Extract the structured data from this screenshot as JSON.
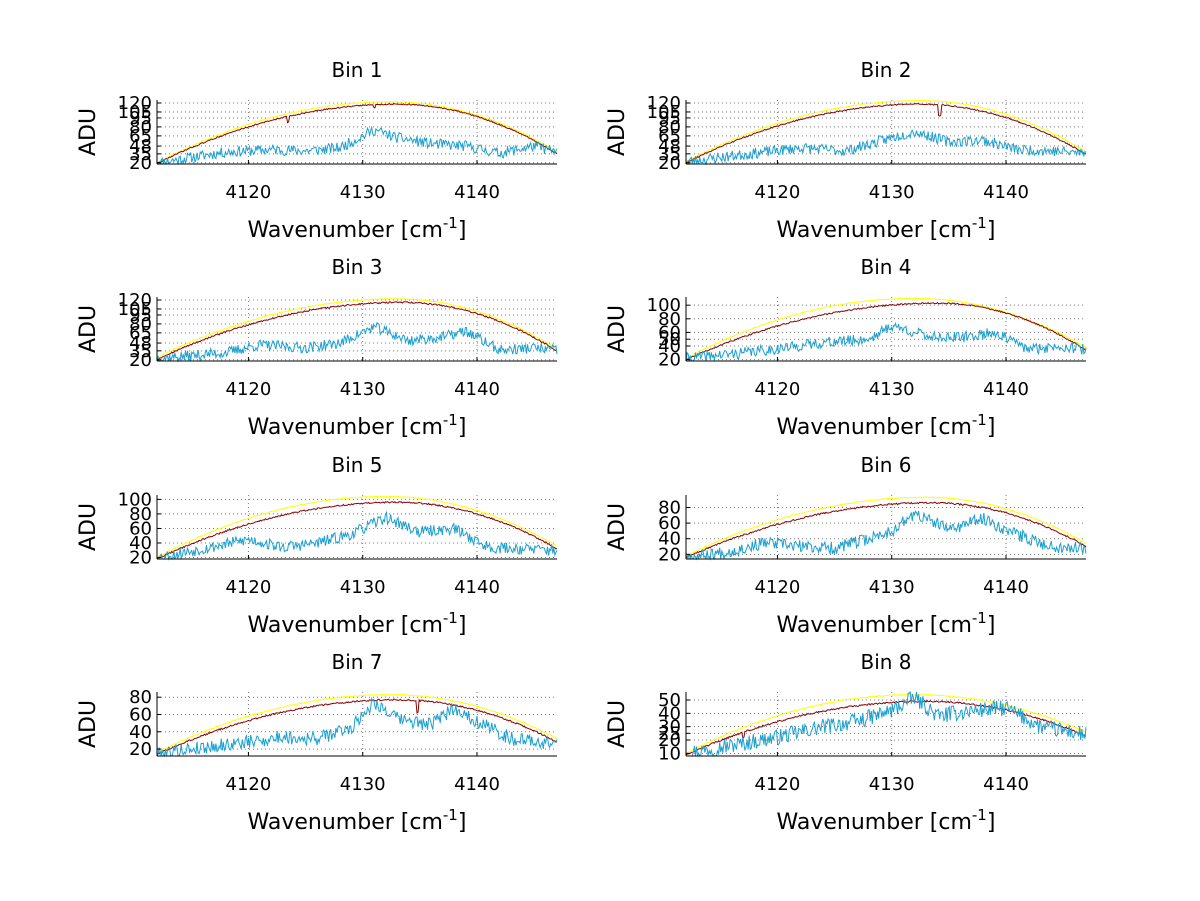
{
  "chart_data": [
    {
      "type": "line",
      "title": "Bin 1",
      "xlabel": "Wavenumber [cm",
      "xlabel_sup": "-1",
      "xlabel_end": "]",
      "ylabel": "ADU",
      "xlim": [
        4112,
        4147
      ],
      "ylim": [
        18,
        125
      ],
      "xticks": [
        4120,
        4130,
        4140
      ],
      "xtick_labels": [
        "4120",
        "4130",
        "4140"
      ],
      "yticks": [
        20,
        35,
        48,
        65,
        80,
        95,
        105,
        120
      ],
      "ytick_labels": [
        "20",
        "35",
        "48",
        "65",
        "80",
        "95",
        "105",
        "120"
      ],
      "grid": true,
      "series": [
        {
          "color": "#ffff00",
          "kind": "envelope",
          "peak_x": 4132.5,
          "peak_y": 122,
          "end_y": [
            20,
            38
          ],
          "noise": 1.2
        },
        {
          "color": "#8b0000",
          "kind": "envelope",
          "peak_x": 4133,
          "peak_y": 118,
          "end_y": [
            19,
            35
          ],
          "noise": 2.0,
          "dips": [
            [
              4123.5,
              -10
            ],
            [
              4131,
              -5
            ]
          ]
        },
        {
          "color": "#1ca0d0",
          "kind": "noisy",
          "noise": 9.0,
          "seed": 11,
          "base_points": [
            [
              4112,
              20
            ],
            [
              4118,
              38
            ],
            [
              4122,
              42
            ],
            [
              4125,
              40
            ],
            [
              4128,
              45
            ],
            [
              4131,
              75
            ],
            [
              4133,
              62
            ],
            [
              4136,
              52
            ],
            [
              4139,
              48
            ],
            [
              4142,
              36
            ],
            [
              4145,
              48
            ],
            [
              4147,
              38
            ]
          ]
        }
      ]
    },
    {
      "type": "line",
      "title": "Bin 2",
      "xlabel": "Wavenumber [cm",
      "xlabel_sup": "-1",
      "xlabel_end": "]",
      "ylabel": "ADU",
      "xlim": [
        4112,
        4147
      ],
      "ylim": [
        18,
        125
      ],
      "xticks": [
        4120,
        4130,
        4140
      ],
      "xtick_labels": [
        "4120",
        "4130",
        "4140"
      ],
      "yticks": [
        20,
        35,
        48,
        65,
        80,
        95,
        105,
        120
      ],
      "ytick_labels": [
        "20",
        "35",
        "48",
        "65",
        "80",
        "95",
        "105",
        "120"
      ],
      "grid": true,
      "series": [
        {
          "color": "#ffff00",
          "kind": "envelope",
          "peak_x": 4132.5,
          "peak_y": 124,
          "end_y": [
            22,
            38
          ],
          "noise": 1.2
        },
        {
          "color": "#8b0000",
          "kind": "envelope",
          "peak_x": 4132.5,
          "peak_y": 118,
          "end_y": [
            20,
            34
          ],
          "noise": 2.0,
          "dips": [
            [
              4134.2,
              -18
            ]
          ]
        },
        {
          "color": "#1ca0d0",
          "kind": "noisy",
          "noise": 9.0,
          "seed": 23,
          "base_points": [
            [
              4112,
              22
            ],
            [
              4118,
              36
            ],
            [
              4122,
              45
            ],
            [
              4126,
              40
            ],
            [
              4130,
              62
            ],
            [
              4132,
              72
            ],
            [
              4135,
              55
            ],
            [
              4138,
              58
            ],
            [
              4141,
              42
            ],
            [
              4144,
              40
            ],
            [
              4147,
              36
            ]
          ]
        }
      ]
    },
    {
      "type": "line",
      "title": "Bin 3",
      "xlabel": "Wavenumber [cm",
      "xlabel_sup": "-1",
      "xlabel_end": "]",
      "ylabel": "ADU",
      "xlim": [
        4112,
        4147
      ],
      "ylim": [
        18,
        125
      ],
      "xticks": [
        4120,
        4130,
        4140
      ],
      "xtick_labels": [
        "4120",
        "4130",
        "4140"
      ],
      "yticks": [
        20,
        35,
        48,
        65,
        80,
        95,
        105,
        120
      ],
      "ytick_labels": [
        "20",
        "35",
        "48",
        "65",
        "80",
        "95",
        "105",
        "120"
      ],
      "grid": true,
      "series": [
        {
          "color": "#ffff00",
          "kind": "envelope",
          "peak_x": 4133,
          "peak_y": 122,
          "end_y": [
            24,
            38
          ],
          "noise": 1.2
        },
        {
          "color": "#8b0000",
          "kind": "envelope",
          "peak_x": 4133.5,
          "peak_y": 116,
          "end_y": [
            21,
            35
          ],
          "noise": 2.5
        },
        {
          "color": "#1ca0d0",
          "kind": "noisy",
          "noise": 9.0,
          "seed": 37,
          "base_points": [
            [
              4112,
              22
            ],
            [
              4118,
              32
            ],
            [
              4121,
              45
            ],
            [
              4125,
              40
            ],
            [
              4128,
              48
            ],
            [
              4131,
              75
            ],
            [
              4134,
              52
            ],
            [
              4137,
              58
            ],
            [
              4139,
              68
            ],
            [
              4142,
              36
            ],
            [
              4145,
              40
            ],
            [
              4147,
              36
            ]
          ]
        }
      ]
    },
    {
      "type": "line",
      "title": "Bin 4",
      "xlabel": "Wavenumber [cm",
      "xlabel_sup": "-1",
      "xlabel_end": "]",
      "ylabel": "ADU",
      "xlim": [
        4112,
        4147
      ],
      "ylim": [
        18,
        112
      ],
      "xticks": [
        4120,
        4130,
        4140
      ],
      "xtick_labels": [
        "4120",
        "4130",
        "4140"
      ],
      "yticks": [
        20,
        40,
        50,
        60,
        80,
        100
      ],
      "ytick_labels": [
        "20",
        "40",
        "50",
        "60",
        "80",
        "100"
      ],
      "grid": true,
      "series": [
        {
          "color": "#ffff00",
          "kind": "envelope",
          "peak_x": 4132,
          "peak_y": 110,
          "end_y": [
            22,
            38
          ],
          "noise": 1.0
        },
        {
          "color": "#8b0000",
          "kind": "envelope",
          "peak_x": 4134,
          "peak_y": 103,
          "end_y": [
            20,
            34
          ],
          "noise": 2.0
        },
        {
          "color": "#1ca0d0",
          "kind": "noisy",
          "noise": 8.0,
          "seed": 41,
          "base_points": [
            [
              4112,
              22
            ],
            [
              4117,
              30
            ],
            [
              4121,
              38
            ],
            [
              4124,
              45
            ],
            [
              4128,
              50
            ],
            [
              4130,
              70
            ],
            [
              4133,
              55
            ],
            [
              4136,
              52
            ],
            [
              4139,
              60
            ],
            [
              4142,
              35
            ],
            [
              4145,
              40
            ],
            [
              4147,
              34
            ]
          ]
        }
      ]
    },
    {
      "type": "line",
      "title": "Bin 5",
      "xlabel": "Wavenumber [cm",
      "xlabel_sup": "-1",
      "xlabel_end": "]",
      "ylabel": "ADU",
      "xlim": [
        4112,
        4147
      ],
      "ylim": [
        18,
        106
      ],
      "xticks": [
        4120,
        4130,
        4140
      ],
      "xtick_labels": [
        "4120",
        "4130",
        "4140"
      ],
      "yticks": [
        20,
        40,
        60,
        80,
        100
      ],
      "ytick_labels": [
        "20",
        "40",
        "60",
        "80",
        "100"
      ],
      "grid": true,
      "series": [
        {
          "color": "#ffff00",
          "kind": "envelope",
          "peak_x": 4132,
          "peak_y": 104,
          "end_y": [
            20,
            36
          ],
          "noise": 1.0
        },
        {
          "color": "#8b0000",
          "kind": "envelope",
          "peak_x": 4133,
          "peak_y": 96,
          "end_y": [
            18,
            32
          ],
          "noise": 2.0
        },
        {
          "color": "#1ca0d0",
          "kind": "noisy",
          "noise": 8.0,
          "seed": 53,
          "base_points": [
            [
              4112,
              20
            ],
            [
              4116,
              32
            ],
            [
              4120,
              45
            ],
            [
              4123,
              34
            ],
            [
              4126,
              40
            ],
            [
              4129,
              52
            ],
            [
              4132,
              75
            ],
            [
              4135,
              55
            ],
            [
              4138,
              60
            ],
            [
              4141,
              34
            ],
            [
              4144,
              32
            ],
            [
              4147,
              30
            ]
          ]
        }
      ]
    },
    {
      "type": "line",
      "title": "Bin 6",
      "xlabel": "Wavenumber [cm",
      "xlabel_sup": "-1",
      "xlabel_end": "]",
      "ylabel": "ADU",
      "xlim": [
        4112,
        4147
      ],
      "ylim": [
        14,
        96
      ],
      "xticks": [
        4120,
        4130,
        4140
      ],
      "xtick_labels": [
        "4120",
        "4130",
        "4140"
      ],
      "yticks": [
        20,
        40,
        60,
        80
      ],
      "ytick_labels": [
        "20",
        "40",
        "60",
        "80"
      ],
      "grid": true,
      "series": [
        {
          "color": "#ffff00",
          "kind": "envelope",
          "peak_x": 4133,
          "peak_y": 93,
          "end_y": [
            18,
            34
          ],
          "noise": 1.0
        },
        {
          "color": "#8b0000",
          "kind": "envelope",
          "peak_x": 4133.5,
          "peak_y": 86,
          "end_y": [
            16,
            30
          ],
          "noise": 2.0
        },
        {
          "color": "#1ca0d0",
          "kind": "noisy",
          "noise": 8.0,
          "seed": 67,
          "base_points": [
            [
              4112,
              16
            ],
            [
              4116,
              24
            ],
            [
              4119,
              35
            ],
            [
              4122,
              30
            ],
            [
              4125,
              28
            ],
            [
              4128,
              40
            ],
            [
              4130,
              50
            ],
            [
              4132,
              72
            ],
            [
              4135,
              52
            ],
            [
              4138,
              66
            ],
            [
              4141,
              45
            ],
            [
              4144,
              30
            ],
            [
              4147,
              28
            ]
          ]
        }
      ]
    },
    {
      "type": "line",
      "title": "Bin 7",
      "xlabel": "Wavenumber [cm",
      "xlabel_sup": "-1",
      "xlabel_end": "]",
      "ylabel": "ADU",
      "xlim": [
        4112,
        4147
      ],
      "ylim": [
        12,
        86
      ],
      "xticks": [
        4120,
        4130,
        4140
      ],
      "xtick_labels": [
        "4120",
        "4130",
        "4140"
      ],
      "yticks": [
        20,
        40,
        60,
        80
      ],
      "ytick_labels": [
        "20",
        "40",
        "60",
        "80"
      ],
      "grid": true,
      "series": [
        {
          "color": "#ffff00",
          "kind": "envelope",
          "peak_x": 4132.5,
          "peak_y": 83,
          "end_y": [
            16,
            32
          ],
          "noise": 1.0
        },
        {
          "color": "#8b0000",
          "kind": "envelope",
          "peak_x": 4133,
          "peak_y": 77,
          "end_y": [
            14,
            28
          ],
          "noise": 1.8,
          "dips": [
            [
              4134.8,
              -14
            ]
          ]
        },
        {
          "color": "#1ca0d0",
          "kind": "noisy",
          "noise": 8.0,
          "seed": 79,
          "base_points": [
            [
              4112,
              15
            ],
            [
              4116,
              22
            ],
            [
              4120,
              28
            ],
            [
              4123,
              34
            ],
            [
              4126,
              32
            ],
            [
              4129,
              45
            ],
            [
              4131,
              75
            ],
            [
              4133,
              55
            ],
            [
              4136,
              48
            ],
            [
              4138,
              68
            ],
            [
              4140,
              52
            ],
            [
              4143,
              32
            ],
            [
              4147,
              26
            ]
          ]
        }
      ]
    },
    {
      "type": "line",
      "title": "Bin 8",
      "xlabel": "Wavenumber [cm",
      "xlabel_sup": "-1",
      "xlabel_end": "]",
      "ylabel": "ADU",
      "xlim": [
        4112,
        4147
      ],
      "ylim": [
        8,
        56
      ],
      "xticks": [
        4120,
        4130,
        4140
      ],
      "xtick_labels": [
        "4120",
        "4130",
        "4140"
      ],
      "yticks": [
        10,
        20,
        25,
        30,
        40,
        50
      ],
      "ytick_labels": [
        "10",
        "20",
        "25",
        "30",
        "40",
        "50"
      ],
      "grid": true,
      "series": [
        {
          "color": "#ffff00",
          "kind": "envelope",
          "peak_x": 4132,
          "peak_y": 54,
          "end_y": [
            10,
            26
          ],
          "noise": 0.8
        },
        {
          "color": "#8b0000",
          "kind": "envelope",
          "peak_x": 4133,
          "peak_y": 49,
          "end_y": [
            9,
            23
          ],
          "noise": 1.2,
          "dips": [
            [
              4117,
              -4
            ]
          ]
        },
        {
          "color": "#1ca0d0",
          "kind": "noisy",
          "noise": 6.0,
          "seed": 97,
          "base_points": [
            [
              4112,
              10
            ],
            [
              4116,
              16
            ],
            [
              4120,
              22
            ],
            [
              4124,
              30
            ],
            [
              4127,
              34
            ],
            [
              4130,
              42
            ],
            [
              4132,
              52
            ],
            [
              4134,
              38
            ],
            [
              4137,
              42
            ],
            [
              4140,
              44
            ],
            [
              4143,
              30
            ],
            [
              4147,
              24
            ]
          ]
        }
      ]
    }
  ]
}
